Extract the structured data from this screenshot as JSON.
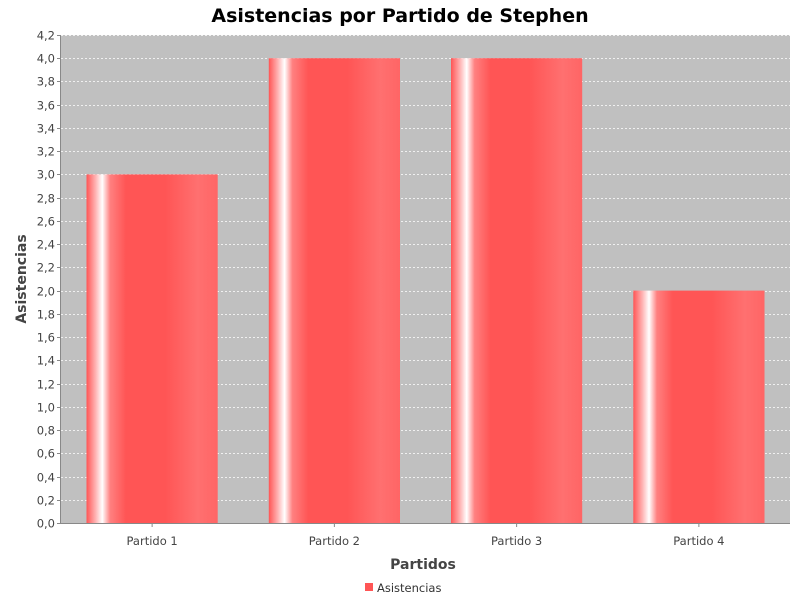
{
  "chart_data": {
    "type": "bar",
    "title": "Asistencias por Partido de Stephen",
    "xlabel": "Partidos",
    "ylabel": "Asistencias",
    "categories": [
      "Partido 1",
      "Partido 2",
      "Partido 3",
      "Partido 4"
    ],
    "series": [
      {
        "name": "Asistencias",
        "values": [
          3.0,
          4.0,
          4.0,
          2.0
        ],
        "color": "#ff5555"
      }
    ],
    "ylim": [
      0,
      4.2
    ],
    "yticks": [
      "0,0",
      "0,2",
      "0,4",
      "0,6",
      "0,8",
      "1,0",
      "1,2",
      "1,4",
      "1,6",
      "1,8",
      "2,0",
      "2,2",
      "2,4",
      "2,6",
      "2,8",
      "3,0",
      "3,2",
      "3,4",
      "3,6",
      "3,8",
      "4,0",
      "4,2"
    ],
    "grid": true,
    "legend": "bottom",
    "plot_background": "#c0c0c0"
  }
}
